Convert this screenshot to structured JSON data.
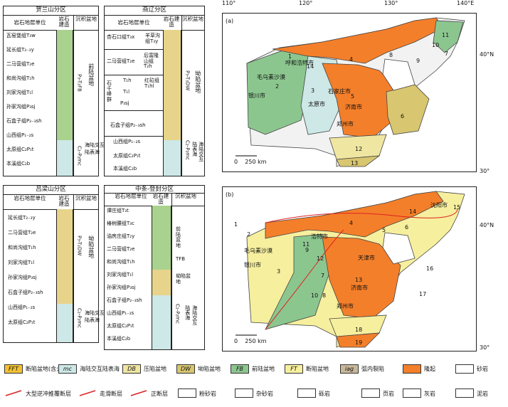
{
  "panels": {
    "helan": {
      "title": "贺兰山分区",
      "h1": "岩石地层单位",
      "h2": "岩石建造",
      "h3": "沉积盆地",
      "rows": [
        "瓦窑堡组T₃w",
        "延长组T₂₋₃y",
        "二马营组T₂e",
        "和尚沟组T₁h",
        "刘家沟组T₁l",
        "孙家沟组P₃sj",
        "石盒子组P₂₋₃sh",
        "山西组P₁₋₂s",
        "太原组C₂P₁t",
        "本溪组C₂b"
      ],
      "basin1": "前陆盆地",
      "basin1_code": "P₃-T₂FB",
      "basin2": "陆表海",
      "basin2b": "海陆交互",
      "basin2_code": "C₂-P₂mc"
    },
    "yanliao": {
      "title": "燕辽分区",
      "h1": "岩石地层单位",
      "h2": "岩石建造",
      "h3": "沉积盆地",
      "r1a": "杏石口组T₃x",
      "r1b": "羊草沟组T₃y",
      "r2a": "二马营组T₂e",
      "r2b": "后富隆山组T₂h",
      "stone": "石千峰群",
      "r3a": "T₁h",
      "r3b": "T₁l",
      "r3c": "P₃sj",
      "r3d": "红砬组T₁hl",
      "r4": "石盒子组P₂₋₃sh",
      "r5": "山西组P₁₋₂s",
      "r6": "太原组C₂P₁t",
      "r7": "本溪组C₂b",
      "basin1": "坳陷盆地",
      "basin1_code": "P₃-T₃DW",
      "basin2": "陆表海",
      "basin2b": "海陆交互",
      "basin2_code": "C₂-P₂mc"
    },
    "lvliang": {
      "title": "吕梁山分区",
      "h1": "岩石地层单位",
      "h2": "岩石建造",
      "h3": "沉积盆地",
      "rows": [
        "延长组T₂₋₃y",
        "二马营组T₂e",
        "和尚沟组T₁h",
        "刘家沟组T₁l",
        "孙家沟组P₃sj",
        "石盒子组P₂₋₃sh",
        "山西组P₁₋₂s",
        "太原组C₂P₁t"
      ],
      "basin1": "坳陷盆地",
      "basin1_code": "P₃-T₂DW",
      "basin2": "陆表海",
      "basin2b": "海陆交互",
      "basin2_code": "C₂-P₂mc"
    },
    "zhongtiao": {
      "title": "中条-登封分区",
      "h1": "岩石地层单位",
      "h2": "岩石建造",
      "h3": "沉积盆地",
      "rows": [
        "谭庄组T₃t",
        "椿树腰组T₃c",
        "油房庄组T₂y",
        "二马营组T₂e",
        "和尚沟组T₁h",
        "刘家沟组T₁l",
        "孙家沟组P₃sj",
        "石盒子组P₂₋₃sh",
        "山西组P₁₋₂s",
        "太原组C₂P₁t",
        "本溪组C₂b"
      ],
      "basin1": "前陆盆地",
      "basin1_code": "TFB",
      "basin_mid": "坳陷盆地",
      "basin2": "陆表海",
      "basin2b": "海陆交互",
      "basin2_code": "C₂-P₂mc"
    }
  },
  "maps": {
    "lon_ticks": [
      "110°",
      "120°",
      "130°",
      "140°E"
    ],
    "lat_ticks_a": [
      "40°N",
      "30°"
    ],
    "lat_ticks_b": [
      "40°N",
      "30°"
    ],
    "a": {
      "tag": "(a)",
      "scale": "0    250 km",
      "cities": [
        "毛乌素沙漠",
        "银川市",
        "呼和浩特市",
        "石家庄市",
        "太原市",
        "济南市",
        "郑州市"
      ],
      "numbers": [
        "1",
        "2",
        "3",
        "4",
        "5",
        "6",
        "7",
        "8",
        "9",
        "10",
        "11",
        "12",
        "13",
        "14"
      ]
    },
    "b": {
      "tag": "(b)",
      "scale": "0    250 km",
      "cities": [
        "毛乌素沙漠",
        "银川市",
        "浩特市",
        "天津市",
        "济南市",
        "郑州市",
        "沈阳市"
      ],
      "numbers": [
        "1",
        "2",
        "3",
        "4",
        "5",
        "6",
        "7",
        "8",
        "9",
        "10",
        "11",
        "12",
        "13",
        "14",
        "15",
        "16",
        "17",
        "18",
        "19"
      ]
    }
  },
  "legend": {
    "r1": [
      {
        "code": "FFT",
        "label": "断陷盆地(含火山)",
        "color": "#f2c232"
      },
      {
        "code": "mc",
        "label": "海陆交互陆表海",
        "color": "#cde8e6"
      },
      {
        "code": "DB",
        "label": "压陷盆地",
        "color": "#efe6a2"
      },
      {
        "code": "DW",
        "label": "坳陷盆地",
        "color": "#d8c670"
      },
      {
        "code": "FB",
        "label": "前陆盆地",
        "color": "#8cc68f"
      },
      {
        "code": "FT",
        "label": "断陷盆地",
        "color": "#f6ef9e"
      },
      {
        "code": "iag",
        "label": "弧内裂陷",
        "color": "#c8b89a"
      },
      {
        "code": "",
        "label": "隆起",
        "color": "#f47f2a"
      },
      {
        "code": "",
        "label": "砂岩",
        "color": "#ffffff"
      }
    ],
    "r2": [
      "大型逆冲推覆断层",
      "走滑断层",
      "正断层",
      "粉砂岩",
      "杂砂岩",
      "砾岩",
      "页岩",
      "灰岩",
      "泥岩"
    ]
  }
}
